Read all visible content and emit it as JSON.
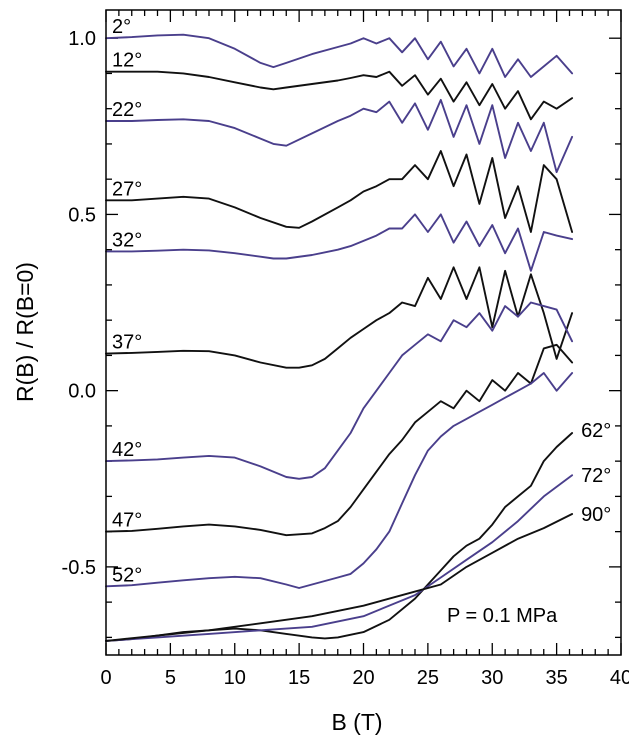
{
  "chart_data": {
    "type": "line",
    "xlabel": "B (T)",
    "ylabel": "R(B) / R(B=0)",
    "xlim": [
      0,
      40
    ],
    "ylim": [
      -0.75,
      1.08
    ],
    "xticks": [
      0,
      5,
      10,
      15,
      20,
      25,
      30,
      35,
      40
    ],
    "yticks": [
      -0.5,
      0.0,
      0.5,
      1.0
    ],
    "ytick_labels": [
      "-0.5",
      "0.0",
      "0.5",
      "1.0"
    ],
    "grid": false,
    "annotation": "P = 0.1 MPa",
    "colors": {
      "black": "#111111",
      "purple": "#4a3f8c"
    },
    "series": [
      {
        "name": "2°",
        "color": "purple",
        "x": [
          0,
          2,
          4,
          6,
          8,
          10,
          12,
          13,
          14,
          16,
          18,
          19,
          20,
          21,
          22,
          23,
          24,
          25,
          26,
          27,
          28,
          29,
          30,
          31,
          32,
          33,
          34,
          35,
          36.2
        ],
        "y": [
          1.0,
          1.003,
          1.008,
          1.01,
          1.0,
          0.97,
          0.93,
          0.918,
          0.93,
          0.955,
          0.975,
          0.985,
          1.0,
          0.985,
          1.0,
          0.96,
          1.0,
          0.94,
          0.99,
          0.92,
          0.97,
          0.9,
          0.97,
          0.89,
          0.94,
          0.89,
          0.92,
          0.95,
          0.9
        ]
      },
      {
        "name": "12°",
        "color": "black",
        "x": [
          0,
          2,
          4,
          6,
          8,
          10,
          12,
          13,
          14,
          16,
          18,
          19,
          20,
          21,
          22,
          23,
          24,
          25,
          26,
          27,
          28,
          29,
          30,
          31,
          32,
          33,
          34,
          35,
          36.2
        ],
        "y": [
          0.905,
          0.905,
          0.905,
          0.9,
          0.89,
          0.875,
          0.86,
          0.855,
          0.86,
          0.87,
          0.88,
          0.887,
          0.895,
          0.89,
          0.905,
          0.865,
          0.895,
          0.84,
          0.885,
          0.82,
          0.875,
          0.81,
          0.87,
          0.8,
          0.85,
          0.77,
          0.82,
          0.8,
          0.83
        ]
      },
      {
        "name": "22°",
        "color": "purple",
        "x": [
          0,
          2,
          4,
          6,
          8,
          10,
          12,
          13,
          14,
          16,
          18,
          19,
          20,
          21,
          22,
          23,
          24,
          25,
          26,
          27,
          28,
          29,
          30,
          31,
          32,
          33,
          34,
          35,
          36.2
        ],
        "y": [
          0.765,
          0.765,
          0.768,
          0.77,
          0.765,
          0.745,
          0.715,
          0.7,
          0.695,
          0.73,
          0.765,
          0.78,
          0.8,
          0.79,
          0.82,
          0.76,
          0.815,
          0.74,
          0.825,
          0.72,
          0.81,
          0.7,
          0.81,
          0.66,
          0.76,
          0.68,
          0.76,
          0.62,
          0.72
        ]
      },
      {
        "name": "27°",
        "color": "black",
        "x": [
          0,
          2,
          4,
          6,
          8,
          10,
          12,
          14,
          15,
          16,
          18,
          19,
          20,
          21,
          22,
          23,
          24,
          25,
          26,
          27,
          28,
          29,
          30,
          31,
          32,
          33,
          34,
          35,
          36.2
        ],
        "y": [
          0.54,
          0.54,
          0.545,
          0.55,
          0.545,
          0.52,
          0.49,
          0.465,
          0.462,
          0.48,
          0.52,
          0.54,
          0.565,
          0.58,
          0.6,
          0.6,
          0.64,
          0.6,
          0.68,
          0.58,
          0.67,
          0.53,
          0.66,
          0.49,
          0.58,
          0.45,
          0.64,
          0.6,
          0.45
        ]
      },
      {
        "name": "32°",
        "color": "purple",
        "x": [
          0,
          2,
          4,
          6,
          8,
          10,
          12,
          13,
          14,
          16,
          18,
          19,
          20,
          21,
          22,
          23,
          24,
          25,
          26,
          27,
          28,
          29,
          30,
          31,
          32,
          33,
          34,
          35,
          36.2
        ],
        "y": [
          0.395,
          0.395,
          0.397,
          0.4,
          0.398,
          0.39,
          0.38,
          0.375,
          0.375,
          0.385,
          0.4,
          0.41,
          0.425,
          0.44,
          0.46,
          0.46,
          0.5,
          0.45,
          0.5,
          0.42,
          0.48,
          0.41,
          0.47,
          0.39,
          0.46,
          0.34,
          0.45,
          0.44,
          0.43
        ]
      },
      {
        "name": "37°",
        "color": "black",
        "x": [
          0,
          2,
          4,
          6,
          8,
          10,
          12,
          14,
          15,
          16,
          17,
          18,
          19,
          20,
          21,
          22,
          23,
          24,
          25,
          26,
          27,
          28,
          29,
          30,
          31,
          32,
          33,
          34,
          35,
          36.2
        ],
        "y": [
          0.105,
          0.107,
          0.11,
          0.113,
          0.112,
          0.1,
          0.08,
          0.065,
          0.065,
          0.072,
          0.09,
          0.12,
          0.15,
          0.175,
          0.2,
          0.22,
          0.25,
          0.24,
          0.32,
          0.26,
          0.35,
          0.26,
          0.35,
          0.18,
          0.34,
          0.21,
          0.33,
          0.22,
          0.09,
          0.22
        ]
      },
      {
        "name": "42°",
        "color": "purple",
        "x": [
          0,
          2,
          4,
          6,
          8,
          10,
          12,
          14,
          15,
          16,
          17,
          18,
          19,
          20,
          21,
          22,
          23,
          24,
          25,
          26,
          27,
          28,
          29,
          30,
          31,
          32,
          33,
          34,
          35,
          36.2
        ],
        "y": [
          -0.2,
          -0.198,
          -0.195,
          -0.19,
          -0.185,
          -0.19,
          -0.215,
          -0.245,
          -0.25,
          -0.245,
          -0.22,
          -0.17,
          -0.12,
          -0.05,
          0.0,
          0.05,
          0.1,
          0.13,
          0.16,
          0.14,
          0.2,
          0.18,
          0.22,
          0.17,
          0.24,
          0.21,
          0.25,
          0.24,
          0.23,
          0.14
        ]
      },
      {
        "name": "47°",
        "color": "black",
        "x": [
          0,
          2,
          4,
          6,
          8,
          10,
          12,
          14,
          16,
          17,
          18,
          19,
          20,
          21,
          22,
          23,
          24,
          25,
          26,
          27,
          28,
          29,
          30,
          31,
          32,
          33,
          34,
          35,
          36.2
        ],
        "y": [
          -0.4,
          -0.398,
          -0.392,
          -0.385,
          -0.38,
          -0.385,
          -0.395,
          -0.41,
          -0.405,
          -0.39,
          -0.37,
          -0.33,
          -0.28,
          -0.23,
          -0.18,
          -0.14,
          -0.09,
          -0.06,
          -0.03,
          -0.05,
          0.0,
          -0.03,
          0.03,
          0.0,
          0.05,
          0.02,
          0.12,
          0.13,
          0.08
        ]
      },
      {
        "name": "52°",
        "color": "purple",
        "x": [
          0,
          2,
          4,
          6,
          8,
          10,
          12,
          14,
          15,
          16,
          17,
          18,
          19,
          20,
          21,
          22,
          23,
          24,
          25,
          26,
          27,
          28,
          29,
          30,
          31,
          32,
          33,
          34,
          35,
          36.2
        ],
        "y": [
          -0.555,
          -0.552,
          -0.545,
          -0.538,
          -0.532,
          -0.528,
          -0.532,
          -0.55,
          -0.56,
          -0.55,
          -0.54,
          -0.53,
          -0.52,
          -0.49,
          -0.45,
          -0.4,
          -0.32,
          -0.24,
          -0.17,
          -0.13,
          -0.1,
          -0.08,
          -0.06,
          -0.04,
          -0.02,
          0.0,
          0.02,
          0.05,
          0.0,
          0.05
        ]
      },
      {
        "name": "62°",
        "color": "black",
        "x": [
          0,
          2,
          4,
          6,
          8,
          10,
          12,
          14,
          16,
          17,
          18,
          20,
          22,
          24,
          25,
          26,
          27,
          28,
          29,
          30,
          31,
          32,
          33,
          34,
          35,
          36.2
        ],
        "y": [
          -0.71,
          -0.705,
          -0.695,
          -0.685,
          -0.68,
          -0.675,
          -0.68,
          -0.69,
          -0.7,
          -0.703,
          -0.7,
          -0.685,
          -0.65,
          -0.59,
          -0.55,
          -0.51,
          -0.47,
          -0.44,
          -0.42,
          -0.38,
          -0.33,
          -0.3,
          -0.27,
          -0.2,
          -0.16,
          -0.12
        ]
      },
      {
        "name": "72°",
        "color": "purple",
        "x": [
          0,
          4,
          8,
          12,
          16,
          20,
          24,
          26,
          28,
          30,
          32,
          34,
          36.2
        ],
        "y": [
          -0.71,
          -0.7,
          -0.69,
          -0.68,
          -0.67,
          -0.64,
          -0.58,
          -0.53,
          -0.48,
          -0.43,
          -0.37,
          -0.3,
          -0.24
        ]
      },
      {
        "name": "90°",
        "color": "black",
        "x": [
          0,
          4,
          8,
          12,
          16,
          20,
          24,
          26,
          28,
          30,
          32,
          34,
          36.2
        ],
        "y": [
          -0.71,
          -0.695,
          -0.68,
          -0.66,
          -0.64,
          -0.61,
          -0.57,
          -0.55,
          -0.5,
          -0.46,
          -0.42,
          -0.39,
          -0.35
        ]
      }
    ]
  }
}
